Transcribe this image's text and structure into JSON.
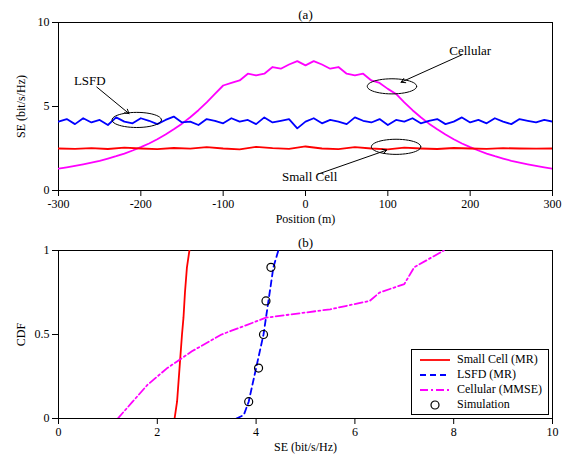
{
  "chart_data": [
    {
      "type": "line",
      "title": "(a)",
      "x_label": "Position (m)",
      "y_label": "SE (bit/s/Hz)",
      "xlim": [
        -300,
        300
      ],
      "ylim": [
        0,
        10
      ],
      "xticks": [
        -300,
        -200,
        -100,
        0,
        100,
        200,
        300
      ],
      "yticks": [
        0,
        5,
        10
      ],
      "grid": false,
      "series": [
        {
          "name": "Cellular",
          "color": "#ff00ff",
          "line_style": "solid",
          "x": [
            -300,
            -290,
            -280,
            -270,
            -260,
            -250,
            -240,
            -230,
            -220,
            -210,
            -200,
            -190,
            -180,
            -170,
            -160,
            -150,
            -140,
            -130,
            -120,
            -110,
            -100,
            -90,
            -80,
            -70,
            -60,
            -50,
            -40,
            -30,
            -20,
            -10,
            0,
            10,
            20,
            30,
            40,
            50,
            60,
            70,
            80,
            90,
            100,
            110,
            120,
            130,
            140,
            150,
            160,
            170,
            180,
            190,
            200,
            210,
            220,
            230,
            240,
            250,
            260,
            270,
            280,
            290,
            300
          ],
          "values": [
            1.3,
            1.38,
            1.47,
            1.56,
            1.66,
            1.77,
            1.9,
            2.04,
            2.2,
            2.38,
            2.58,
            2.8,
            3.05,
            3.33,
            3.64,
            3.98,
            4.36,
            4.78,
            5.25,
            5.75,
            6.25,
            6.4,
            6.55,
            6.95,
            6.85,
            6.95,
            7.35,
            7.25,
            7.5,
            7.7,
            7.45,
            7.7,
            7.5,
            7.25,
            7.35,
            6.95,
            6.85,
            6.95,
            6.55,
            6.4,
            6.05,
            5.75,
            5.25,
            4.78,
            4.36,
            3.98,
            3.64,
            3.33,
            3.05,
            2.8,
            2.58,
            2.38,
            2.2,
            2.04,
            1.9,
            1.77,
            1.66,
            1.56,
            1.47,
            1.38,
            1.3
          ]
        },
        {
          "name": "LSFD",
          "color": "#0000ff",
          "line_style": "solid",
          "x": [
            -300,
            -290,
            -280,
            -270,
            -260,
            -250,
            -240,
            -230,
            -220,
            -210,
            -200,
            -190,
            -180,
            -170,
            -160,
            -150,
            -140,
            -130,
            -120,
            -110,
            -100,
            -90,
            -80,
            -70,
            -60,
            -50,
            -40,
            -30,
            -20,
            -10,
            0,
            10,
            20,
            30,
            40,
            50,
            60,
            70,
            80,
            90,
            100,
            110,
            120,
            130,
            140,
            150,
            160,
            170,
            180,
            190,
            200,
            210,
            220,
            230,
            240,
            250,
            260,
            270,
            280,
            290,
            300
          ],
          "values": [
            4.1,
            4.25,
            3.95,
            4.3,
            4.05,
            4.2,
            3.9,
            4.35,
            4.1,
            4.0,
            4.3,
            4.15,
            3.95,
            4.2,
            4.4,
            4.05,
            4.1,
            3.9,
            4.25,
            4.15,
            4.0,
            4.3,
            4.1,
            4.2,
            3.95,
            4.35,
            4.05,
            4.15,
            4.25,
            3.7,
            4.1,
            4.3,
            4.0,
            4.2,
            4.1,
            3.95,
            4.35,
            4.15,
            4.05,
            4.25,
            3.9,
            4.2,
            4.1,
            4.3,
            4.0,
            4.15,
            4.25,
            3.95,
            4.1,
            4.35,
            4.05,
            4.2,
            4.0,
            4.3,
            4.1,
            3.95,
            4.25,
            4.15,
            4.05,
            4.2,
            4.1
          ]
        },
        {
          "name": "Small Cell",
          "color": "#ff0000",
          "line_style": "solid",
          "x": [
            -300,
            -280,
            -260,
            -240,
            -220,
            -200,
            -180,
            -160,
            -140,
            -120,
            -100,
            -80,
            -60,
            -40,
            -20,
            0,
            20,
            40,
            60,
            80,
            100,
            120,
            140,
            160,
            180,
            200,
            220,
            240,
            260,
            280,
            300
          ],
          "values": [
            2.5,
            2.48,
            2.52,
            2.47,
            2.55,
            2.5,
            2.46,
            2.53,
            2.49,
            2.58,
            2.5,
            2.45,
            2.6,
            2.52,
            2.48,
            2.62,
            2.5,
            2.46,
            2.58,
            2.5,
            2.45,
            2.55,
            2.5,
            2.47,
            2.53,
            2.5,
            2.48,
            2.52,
            2.5,
            2.49,
            2.5
          ]
        }
      ],
      "annotations": [
        {
          "text": "LSFD",
          "x": -262,
          "y": 6.5,
          "target_x": -205,
          "target_y": 4.2
        },
        {
          "text": "Cellular",
          "x": 200,
          "y": 8.3,
          "target_x": 105,
          "target_y": 6.2
        },
        {
          "text": "Small Cell",
          "x": 5,
          "y": 0.8,
          "target_x": 110,
          "target_y": 2.6
        }
      ]
    },
    {
      "type": "line",
      "title": "(b)",
      "x_label": "SE (bit/s/Hz)",
      "y_label": "CDF",
      "xlim": [
        0,
        10
      ],
      "ylim": [
        0,
        1
      ],
      "xticks": [
        0,
        2,
        4,
        6,
        8,
        10
      ],
      "yticks": [
        0,
        0.5,
        1
      ],
      "grid": false,
      "legend": "lower right",
      "series": [
        {
          "name": "Small Cell (MR)",
          "color": "#ff0000",
          "line_style": "solid",
          "x": [
            2.35,
            2.4,
            2.45,
            2.5,
            2.53,
            2.56,
            2.6,
            2.65
          ],
          "values": [
            0,
            0.1,
            0.3,
            0.5,
            0.6,
            0.75,
            0.9,
            1
          ]
        },
        {
          "name": "LSFD (MR)",
          "color": "#0000ff",
          "line_style": "dashed",
          "x": [
            3.6,
            3.75,
            3.85,
            4.0,
            4.15,
            4.25,
            4.35,
            4.45
          ],
          "values": [
            0,
            0.02,
            0.1,
            0.3,
            0.5,
            0.7,
            0.9,
            1
          ]
        },
        {
          "name": "Cellular (MMSE)",
          "color": "#ff00ff",
          "line_style": "dashdot",
          "x": [
            1.2,
            1.5,
            1.8,
            2.2,
            2.7,
            3.3,
            4.2,
            5.5,
            6.3,
            6.5,
            7.0,
            7.2,
            7.5,
            7.8
          ],
          "values": [
            0,
            0.1,
            0.2,
            0.3,
            0.4,
            0.5,
            0.6,
            0.65,
            0.7,
            0.75,
            0.8,
            0.9,
            0.95,
            1
          ]
        },
        {
          "name": "Simulation",
          "color": "#000000",
          "type": "scatter",
          "marker": "circle",
          "x": [
            3.85,
            4.05,
            4.15,
            4.2,
            4.3
          ],
          "values": [
            0.1,
            0.3,
            0.5,
            0.7,
            0.9
          ]
        }
      ]
    }
  ]
}
